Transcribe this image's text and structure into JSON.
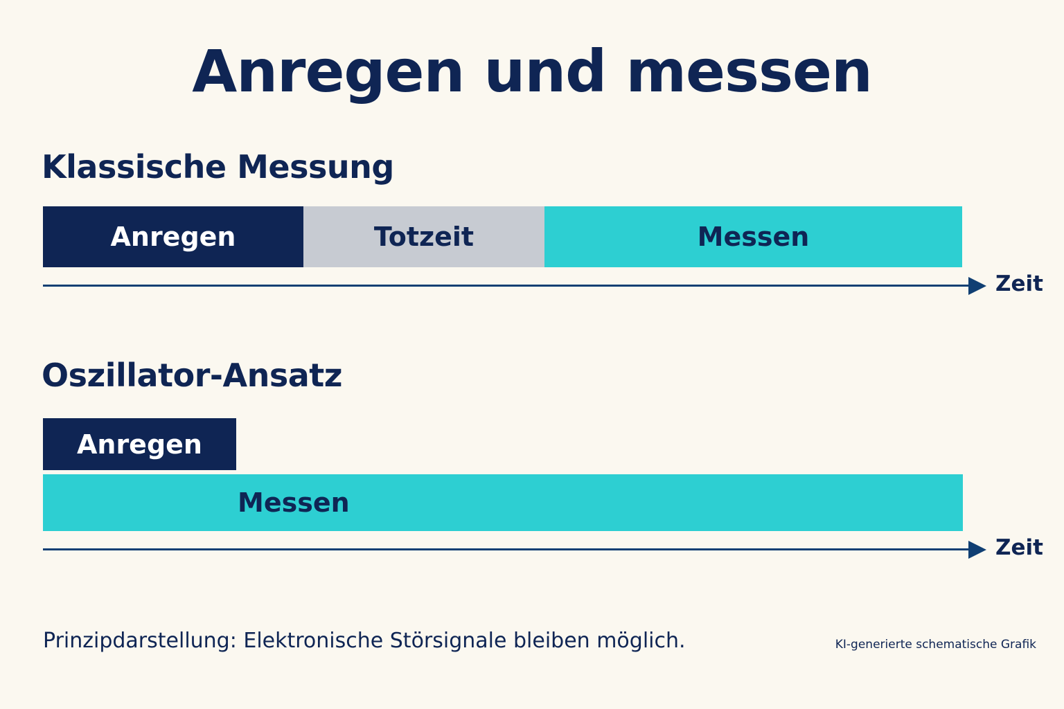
{
  "title": "Anregen und messen",
  "sections": [
    {
      "heading": "Klassische Messung",
      "blocks": [
        {
          "label": "Anregen"
        },
        {
          "label": "Totzeit"
        },
        {
          "label": "Messen"
        }
      ],
      "axis_label": "Zeit"
    },
    {
      "heading": "Oszillator-Ansatz",
      "blocks": [
        {
          "label": "Anregen"
        },
        {
          "label": "Messen"
        }
      ],
      "axis_label": "Zeit"
    }
  ],
  "footnote": "Prinzipdarstellung: Elektronische Störsignale bleiben möglich.",
  "credit": "KI-generierte schematische Grafik",
  "colors": {
    "dark_navy": "#0f2554",
    "grey": "#c7cbd2",
    "teal": "#2dcfd2",
    "axis": "#103f73",
    "background": "#fbf8f0"
  }
}
